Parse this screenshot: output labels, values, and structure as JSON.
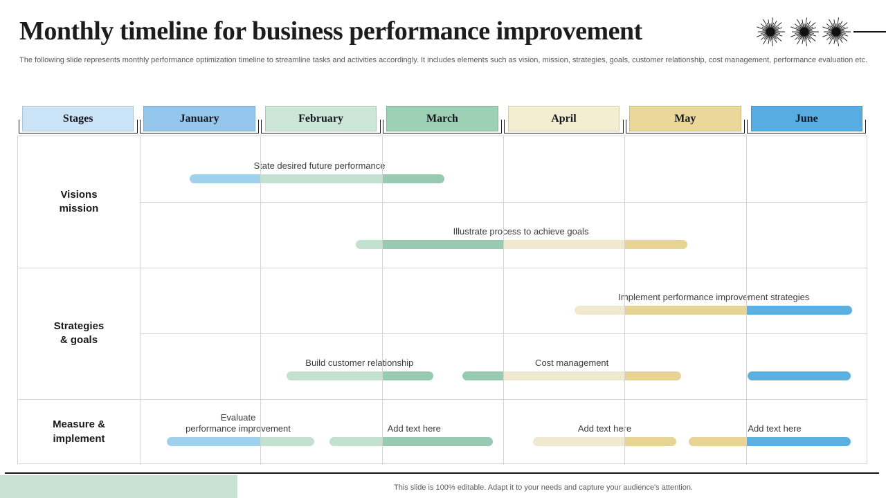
{
  "slide": {
    "title": "Monthly timeline for business performance improvement",
    "subtitle": "The following slide represents monthly performance optimization timeline to streamline tasks and activities accordingly. It includes elements such as vision, mission, strategies, goals, customer relationship, cost management,  performance evaluation etc.",
    "footer_note": "This slide is 100% editable.  Adapt it to your needs and capture your audience's attention.",
    "decor": {
      "starburst_icons": [
        "starburst-icon",
        "starburst-icon",
        "starburst-icon"
      ],
      "accent_color": "#c8e3d3",
      "rule_color": "#151515"
    }
  },
  "chart_data": {
    "type": "gantt",
    "title": "Monthly timeline for business performance improvement",
    "x_axis": {
      "unit": "month",
      "range": [
        0,
        6
      ],
      "categories": [
        "January",
        "February",
        "March",
        "April",
        "May",
        "June"
      ]
    },
    "grid": true,
    "header": {
      "columns": [
        {
          "label": "Stages",
          "color": "#cbe3f6"
        },
        {
          "label": "January",
          "color": "#94c7eb"
        },
        {
          "label": "February",
          "color": "#cce6d8"
        },
        {
          "label": "March",
          "color": "#9ed0b5"
        },
        {
          "label": "April",
          "color": "#f3edd2"
        },
        {
          "label": "May",
          "color": "#e9d89a"
        },
        {
          "label": "June",
          "color": "#57ade1"
        }
      ]
    },
    "palette": {
      "sky": "#a0d1ec",
      "pale": "#c2e1d1",
      "green": "#97cab0",
      "cream": "#f1e9cf",
      "gold": "#e7d494",
      "blue": "#5bb0e2"
    },
    "stages": [
      {
        "label": "Visions\nmission",
        "rows": [
          0,
          2
        ]
      },
      {
        "label": "Strategies\n& goals",
        "rows": [
          2,
          4
        ]
      },
      {
        "label": "Measure &\nimplement",
        "rows": [
          4,
          5
        ]
      }
    ],
    "tasks": [
      {
        "row": 0,
        "label": "State desired future performance",
        "label_center": 1.48,
        "start": 0.41,
        "end": 2.51,
        "segments": [
          [
            "sky",
            0.41,
            1.0
          ],
          [
            "pale",
            1.0,
            2.0
          ],
          [
            "green",
            2.0,
            2.51
          ]
        ]
      },
      {
        "row": 1,
        "label": "Illustrate process to achieve goals",
        "label_center": 3.14,
        "start": 1.78,
        "end": 4.51,
        "segments": [
          [
            "pale",
            1.78,
            2.0
          ],
          [
            "green",
            2.0,
            3.0
          ],
          [
            "cream",
            3.0,
            4.0
          ],
          [
            "gold",
            4.0,
            4.51
          ]
        ]
      },
      {
        "row": 2,
        "label": "Implement performance improvement strategies",
        "label_center": 4.73,
        "start": 3.58,
        "end": 5.87,
        "segments": [
          [
            "cream",
            3.58,
            4.0
          ],
          [
            "gold",
            4.0,
            5.0
          ],
          [
            "blue",
            5.0,
            5.87
          ]
        ]
      },
      {
        "row": 3,
        "label": "Build customer relationship",
        "label_center": 1.81,
        "start": 1.21,
        "end": 2.42,
        "segments": [
          [
            "pale",
            1.21,
            2.0
          ],
          [
            "green",
            2.0,
            2.42
          ]
        ]
      },
      {
        "row": 3,
        "label": "Cost management",
        "label_center": 3.56,
        "start": 2.66,
        "end": 4.46,
        "segments": [
          [
            "green",
            2.66,
            3.0
          ],
          [
            "cream",
            3.0,
            4.0
          ],
          [
            "gold",
            4.0,
            4.46
          ]
        ]
      },
      {
        "row": 3,
        "label": "",
        "label_center": null,
        "start": 5.01,
        "end": 5.86,
        "segments": [
          [
            "blue",
            5.01,
            5.86
          ]
        ]
      },
      {
        "row": 4,
        "label": "Evaluate\nperformance improvement",
        "label_center": 0.81,
        "start": 0.22,
        "end": 1.44,
        "segments": [
          [
            "sky",
            0.22,
            1.0
          ],
          [
            "pale",
            1.0,
            1.44
          ]
        ]
      },
      {
        "row": 4,
        "label": "Add text here",
        "placeholder": true,
        "label_center": 2.26,
        "start": 1.56,
        "end": 2.91,
        "segments": [
          [
            "pale",
            1.56,
            2.0
          ],
          [
            "green",
            2.0,
            2.91
          ]
        ]
      },
      {
        "row": 4,
        "label": "Add text here",
        "placeholder": true,
        "label_center": 3.83,
        "start": 3.24,
        "end": 4.42,
        "segments": [
          [
            "cream",
            3.24,
            4.0
          ],
          [
            "gold",
            4.0,
            4.42
          ]
        ]
      },
      {
        "row": 4,
        "label": "Add text here",
        "placeholder": true,
        "label_center": 5.23,
        "start": 4.52,
        "end": 5.86,
        "segments": [
          [
            "gold",
            4.52,
            5.0
          ],
          [
            "blue",
            5.0,
            5.86
          ]
        ]
      }
    ]
  }
}
